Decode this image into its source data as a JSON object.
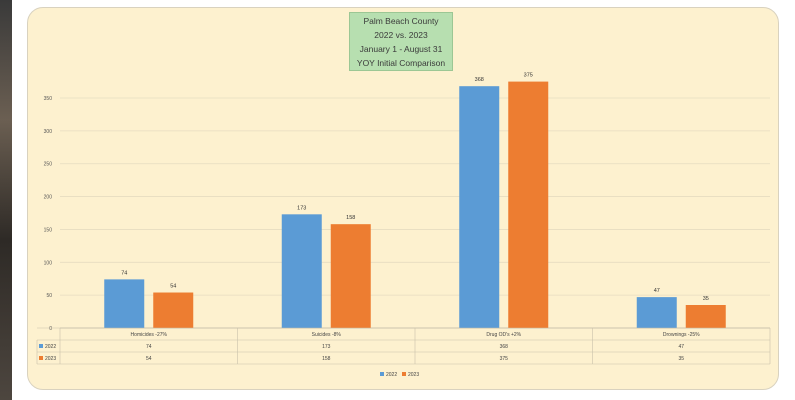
{
  "chart_data": {
    "type": "bar",
    "title_lines": [
      "Palm Beach County",
      "2022 vs. 2023",
      "January 1 - August 31",
      "YOY Initial Comparison"
    ],
    "categories": [
      "Homicides -27%",
      "Suicides -8%",
      "Drug OD's +2%",
      "Drownings -25%"
    ],
    "series": [
      {
        "name": "2022",
        "values": [
          74,
          173,
          368,
          47
        ],
        "color": "#5b9bd5"
      },
      {
        "name": "2023",
        "values": [
          54,
          158,
          375,
          35
        ],
        "color": "#ed7d31"
      }
    ],
    "yticks": [
      0,
      50,
      100,
      150,
      200,
      250,
      300,
      350
    ],
    "ylim": [
      0,
      400
    ],
    "grid": true,
    "legend_position": "bottom",
    "data_table": true
  }
}
